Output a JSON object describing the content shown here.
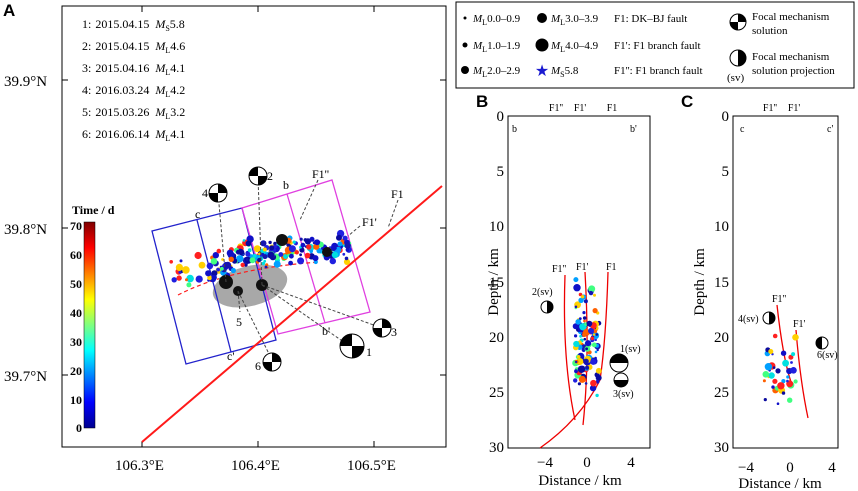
{
  "figure": {
    "panels": [
      "A",
      "B",
      "C"
    ],
    "events": [
      {
        "num": "1:",
        "date": "2015.04.15",
        "scale": "M",
        "sub": "S",
        "mag": "5.8"
      },
      {
        "num": "2:",
        "date": "2015.04.15",
        "scale": "M",
        "sub": "L",
        "mag": "4.6"
      },
      {
        "num": "3:",
        "date": "2015.04.16",
        "scale": "M",
        "sub": "L",
        "mag": "4.1"
      },
      {
        "num": "4:",
        "date": "2016.03.24",
        "scale": "M",
        "sub": "L",
        "mag": "4.2"
      },
      {
        "num": "5:",
        "date": "2015.03.26",
        "scale": "M",
        "sub": "L",
        "mag": "3.2"
      },
      {
        "num": "6:",
        "date": "2016.06.14",
        "scale": "M",
        "sub": "L",
        "mag": "4.1"
      }
    ],
    "map": {
      "lat_labels": [
        "39.9°N",
        "39.8°N",
        "39.7°N"
      ],
      "lon_labels": [
        "106.3°E",
        "106.4°E",
        "106.5°E"
      ],
      "colorbar_title": "Time / d",
      "colorbar_ticks": [
        "70",
        "60",
        "50",
        "40",
        "30",
        "20",
        "10",
        "0"
      ],
      "profile_labels": {
        "b": "b",
        "b_end": "b'",
        "c": "c",
        "c_end": "c'"
      },
      "fault_labels": {
        "f1": "F1",
        "f1p": "F1'",
        "f1pp": "F1''"
      },
      "mech_labels": [
        "1",
        "2",
        "3",
        "4",
        "5",
        "6"
      ]
    },
    "legend": {
      "mag_items": [
        {
          "scale": "M",
          "sub": "L",
          "range": "0.0–0.9"
        },
        {
          "scale": "M",
          "sub": "L",
          "range": "1.0–1.9"
        },
        {
          "scale": "M",
          "sub": "L",
          "range": "2.0–2.9"
        },
        {
          "scale": "M",
          "sub": "L",
          "range": "3.0–3.9"
        },
        {
          "scale": "M",
          "sub": "L",
          "range": "4.0–4.9"
        },
        {
          "scale": "M",
          "sub": "S",
          "range": "5.8"
        }
      ],
      "faults": [
        "F1: DK–BJ fault",
        "F1': F1 branch fault",
        "F1'': F1 branch fault"
      ],
      "focal": "Focal mechanism solution",
      "focal_line1": "Focal mechanism",
      "focal_line2": "solution",
      "proj_line1": "Focal mechanism",
      "proj_line2": "solution projection",
      "sv": "(sv)"
    },
    "sections": {
      "depth_label": "Depth / km",
      "distance_label": "Distance / km",
      "depth_ticks": [
        "0",
        "5",
        "10",
        "15",
        "20",
        "25",
        "30"
      ],
      "b_dist_ticks": [
        "−4",
        "0",
        "4"
      ],
      "c_dist_ticks": [
        "−4",
        "0",
        "4"
      ],
      "b_ends": [
        "b",
        "b'"
      ],
      "c_ends": [
        "c",
        "c'"
      ],
      "b_top_faults": [
        "F1''",
        "F1'",
        "F1"
      ],
      "c_top_faults": [
        "F1''",
        "F1'"
      ],
      "b_annots": [
        "F1''",
        "F1'",
        "F1",
        "2(sv)",
        "1(sv)",
        "3(sv)"
      ],
      "c_annots": [
        "F1''",
        "F1'",
        "4(sv)",
        "6(sv)"
      ]
    }
  }
}
